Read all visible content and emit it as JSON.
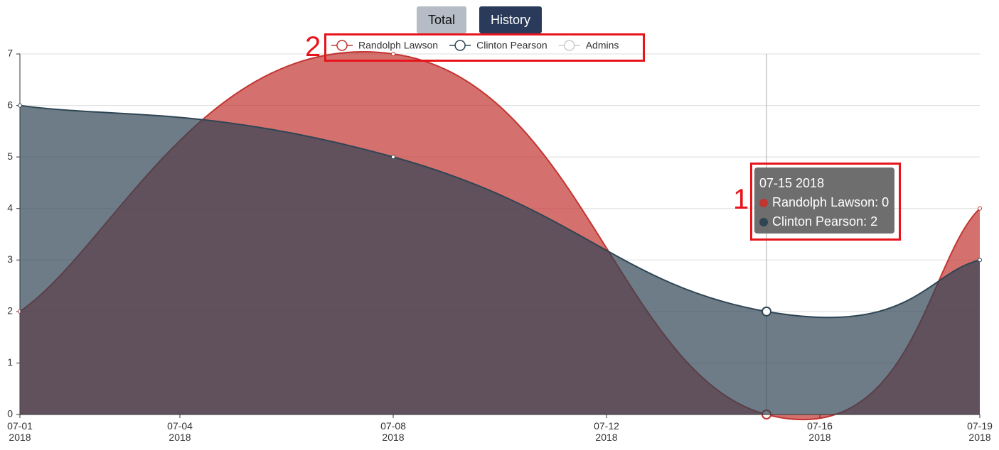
{
  "buttons": [
    "Total",
    "History"
  ],
  "annotations": [
    "1",
    "2"
  ],
  "tooltip": {
    "title": "07-15 2018",
    "items": [
      "Randolph Lawson: 0",
      "Clinton Pearson: 2"
    ]
  },
  "chart_data": {
    "type": "area",
    "x": [
      "2018-07-01",
      "2018-07-08",
      "2018-07-15",
      "2018-07-19"
    ],
    "series": [
      {
        "name": "Randolph Lawson",
        "color": "#c23531",
        "values": [
          2,
          7,
          0,
          4
        ]
      },
      {
        "name": "Clinton Pearson",
        "color": "#2f4554",
        "values": [
          6,
          5,
          2,
          3
        ]
      }
    ],
    "hidden_series": [
      {
        "name": "Admins",
        "color": "#cccccc"
      }
    ],
    "xlim": [
      "2018-07-01",
      "2018-07-19"
    ],
    "xticks": [
      {
        "value": "2018-07-01",
        "label": "07-01\n2018"
      },
      {
        "value": "2018-07-04",
        "label": "07-04\n2018"
      },
      {
        "value": "2018-07-08",
        "label": "07-08\n2018"
      },
      {
        "value": "2018-07-12",
        "label": "07-12\n2018"
      },
      {
        "value": "2018-07-16",
        "label": "07-16\n2018"
      },
      {
        "value": "2018-07-19",
        "label": "07-19\n2018"
      }
    ],
    "ylim": [
      0,
      7
    ],
    "yticks": [
      0,
      1,
      2,
      3,
      4,
      5,
      6,
      7
    ],
    "grid": true,
    "smooth": true
  }
}
